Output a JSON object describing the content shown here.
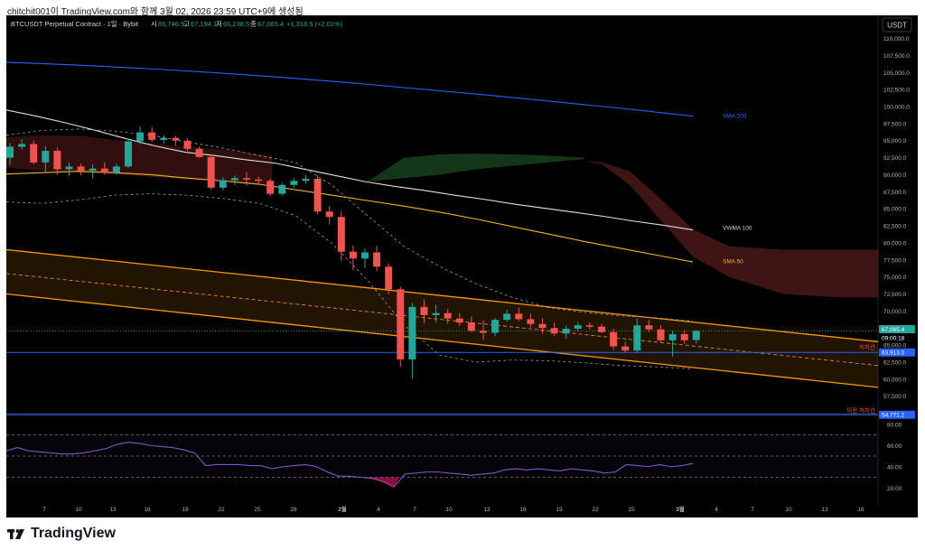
{
  "caption": "chitchit001이 TradingView.com와 함께 3월 02, 2026 23:59 UTC+9에 생성됨",
  "header": {
    "symbol": "BTCUSDT Perpetual Contract · 1일 · Bybit",
    "o_label": "시",
    "o": "65,746.9",
    "h_label": "고",
    "h": "67,194.1",
    "l_label": "저",
    "l": "65,238.5",
    "c_label": "종",
    "c": "67,065.4",
    "change": "+1,318.5 (+2.01%)"
  },
  "currency_button": "USDT",
  "price_axis": {
    "ticks": [
      "110,000.0",
      "107,500.0",
      "105,000.0",
      "102,500.0",
      "100,000.0",
      "97,500.0",
      "95,000.0",
      "92,500.0",
      "90,000.0",
      "87,500.0",
      "85,000.0",
      "82,500.0",
      "80,000.0",
      "77,500.0",
      "75,000.0",
      "72,500.0",
      "70,000.0",
      "67,500.0",
      "65,000.0",
      "62,500.0",
      "60,000.0",
      "57,500.0"
    ],
    "last_price": "67,065.4",
    "countdown": "09:00:18",
    "support_price": "63,913.0",
    "prev_low_price": "54,771.2"
  },
  "rsi_axis": {
    "ticks": [
      "80.00",
      "60.00",
      "40.00",
      "20.00"
    ]
  },
  "time_axis": {
    "ticks": [
      "7",
      "10",
      "13",
      "16",
      "19",
      "22",
      "25",
      "28",
      "2월",
      "4",
      "7",
      "10",
      "13",
      "16",
      "19",
      "22",
      "25",
      "3월",
      "4",
      "7",
      "10",
      "13",
      "16"
    ]
  },
  "labels": {
    "sma200": "SMA 200",
    "vwma100": "VWMA 100",
    "sma50": "SMA 50",
    "support": "지지선",
    "prev_low": "이전 저지선"
  },
  "colors": {
    "up": "#26a69a",
    "down": "#ef5350",
    "sma200": "#2962ff",
    "vwma100": "#e0e0e0",
    "sma50": "#f0b429",
    "channel": "#ff9800",
    "support_line": "#2962ff",
    "rsi": "#7e57c2"
  },
  "footer": {
    "brand": "TradingView"
  },
  "chart_data": {
    "type": "candlestick",
    "symbol": "BTCUSDT",
    "timeframe": "1D",
    "x_range": [
      "Jan 5",
      "Mar 2"
    ],
    "ylim": [
      56000,
      111000
    ],
    "candles": [
      {
        "o": 92500,
        "h": 94600,
        "l": 91400,
        "c": 94100
      },
      {
        "o": 94100,
        "h": 95200,
        "l": 93700,
        "c": 94500
      },
      {
        "o": 94500,
        "h": 95000,
        "l": 91500,
        "c": 91800
      },
      {
        "o": 91800,
        "h": 94200,
        "l": 90400,
        "c": 93500
      },
      {
        "o": 93500,
        "h": 94000,
        "l": 90000,
        "c": 90800
      },
      {
        "o": 90800,
        "h": 91800,
        "l": 89800,
        "c": 91200
      },
      {
        "o": 91200,
        "h": 91600,
        "l": 89900,
        "c": 90600
      },
      {
        "o": 90600,
        "h": 91500,
        "l": 89500,
        "c": 90900
      },
      {
        "o": 90900,
        "h": 91800,
        "l": 90000,
        "c": 90300
      },
      {
        "o": 90300,
        "h": 91600,
        "l": 90000,
        "c": 91200
      },
      {
        "o": 91200,
        "h": 95300,
        "l": 91000,
        "c": 94900
      },
      {
        "o": 94900,
        "h": 97100,
        "l": 94500,
        "c": 96200
      },
      {
        "o": 96200,
        "h": 97000,
        "l": 94800,
        "c": 95100
      },
      {
        "o": 95100,
        "h": 95800,
        "l": 94500,
        "c": 95400
      },
      {
        "o": 95400,
        "h": 95700,
        "l": 94300,
        "c": 95000
      },
      {
        "o": 95000,
        "h": 95300,
        "l": 93500,
        "c": 93800
      },
      {
        "o": 93800,
        "h": 94100,
        "l": 92500,
        "c": 92600
      },
      {
        "o": 92600,
        "h": 92900,
        "l": 87800,
        "c": 88100
      },
      {
        "o": 88100,
        "h": 89600,
        "l": 87700,
        "c": 89200
      },
      {
        "o": 89200,
        "h": 89900,
        "l": 88500,
        "c": 89500
      },
      {
        "o": 89500,
        "h": 90400,
        "l": 88400,
        "c": 89300
      },
      {
        "o": 89300,
        "h": 89700,
        "l": 88600,
        "c": 89100
      },
      {
        "o": 89100,
        "h": 89400,
        "l": 86900,
        "c": 87200
      },
      {
        "o": 87200,
        "h": 88800,
        "l": 86900,
        "c": 88500
      },
      {
        "o": 88500,
        "h": 89500,
        "l": 88100,
        "c": 89100
      },
      {
        "o": 89100,
        "h": 90000,
        "l": 88700,
        "c": 89400
      },
      {
        "o": 89400,
        "h": 89900,
        "l": 84200,
        "c": 84600
      },
      {
        "o": 84600,
        "h": 85400,
        "l": 82700,
        "c": 83800
      },
      {
        "o": 83800,
        "h": 84600,
        "l": 77400,
        "c": 78700
      },
      {
        "o": 78700,
        "h": 79600,
        "l": 76000,
        "c": 77700
      },
      {
        "o": 77700,
        "h": 79200,
        "l": 76300,
        "c": 78600
      },
      {
        "o": 78600,
        "h": 79600,
        "l": 75900,
        "c": 76500
      },
      {
        "o": 76500,
        "h": 77000,
        "l": 72500,
        "c": 73200
      },
      {
        "o": 73200,
        "h": 73600,
        "l": 61800,
        "c": 62900
      },
      {
        "o": 62900,
        "h": 71200,
        "l": 60100,
        "c": 70600
      },
      {
        "o": 70600,
        "h": 71700,
        "l": 68200,
        "c": 69400
      },
      {
        "o": 69400,
        "h": 70900,
        "l": 68300,
        "c": 69700
      },
      {
        "o": 69700,
        "h": 70300,
        "l": 68100,
        "c": 68900
      },
      {
        "o": 68900,
        "h": 69700,
        "l": 67800,
        "c": 68300
      },
      {
        "o": 68300,
        "h": 69200,
        "l": 66900,
        "c": 67100
      },
      {
        "o": 67100,
        "h": 68600,
        "l": 65700,
        "c": 66800
      },
      {
        "o": 66800,
        "h": 69000,
        "l": 66300,
        "c": 68700
      },
      {
        "o": 68700,
        "h": 70200,
        "l": 68400,
        "c": 69600
      },
      {
        "o": 69600,
        "h": 70500,
        "l": 68500,
        "c": 68800
      },
      {
        "o": 68800,
        "h": 69600,
        "l": 67600,
        "c": 68100
      },
      {
        "o": 68100,
        "h": 68900,
        "l": 66700,
        "c": 67500
      },
      {
        "o": 67500,
        "h": 68300,
        "l": 66300,
        "c": 66700
      },
      {
        "o": 66700,
        "h": 67900,
        "l": 65900,
        "c": 67400
      },
      {
        "o": 67400,
        "h": 68400,
        "l": 67000,
        "c": 67900
      },
      {
        "o": 67900,
        "h": 68300,
        "l": 67300,
        "c": 67700
      },
      {
        "o": 67700,
        "h": 68100,
        "l": 66800,
        "c": 66900
      },
      {
        "o": 66900,
        "h": 67400,
        "l": 64300,
        "c": 64800
      },
      {
        "o": 64800,
        "h": 65500,
        "l": 63900,
        "c": 64200
      },
      {
        "o": 64200,
        "h": 68900,
        "l": 63900,
        "c": 67900
      },
      {
        "o": 67900,
        "h": 68700,
        "l": 66900,
        "c": 67300
      },
      {
        "o": 67300,
        "h": 67900,
        "l": 65400,
        "c": 65700
      },
      {
        "o": 65700,
        "h": 67100,
        "l": 63300,
        "c": 66600
      },
      {
        "o": 66600,
        "h": 67200,
        "l": 65200,
        "c": 65700
      },
      {
        "o": 65746.9,
        "h": 67194.1,
        "l": 65238.5,
        "c": 67065.4
      }
    ],
    "sma200": [
      106500,
      106300,
      106100,
      105850,
      105600,
      105300,
      105000,
      104650,
      104300,
      103900,
      103500,
      103050,
      102600,
      102150,
      101700,
      101200,
      100700,
      100200,
      99700,
      99150,
      98600
    ],
    "vwma100": [
      99500,
      98600,
      97600,
      96500,
      95300,
      94200,
      93300,
      92800,
      92200,
      91700,
      90800,
      89900,
      89000,
      88300,
      87700,
      87000,
      86400,
      85700,
      85100,
      84500,
      83900,
      83200,
      82600,
      81900
    ],
    "sma50": [
      90100,
      90300,
      90500,
      90300,
      90000,
      89500,
      89100,
      88600,
      87800,
      87000,
      86200,
      85400,
      84500,
      83500,
      82400,
      81300,
      80200,
      79200,
      78200,
      77200
    ],
    "channel": {
      "upper_start": 79000,
      "upper_end": 65500,
      "mid_start": 75500,
      "mid_end": 62000,
      "lower_start": 72500,
      "lower_end": 58800
    },
    "support": 63913.0,
    "previous_low": 54771.2,
    "rsi": {
      "ylim": [
        10,
        90
      ],
      "levels": [
        70,
        50,
        30
      ],
      "values": [
        55,
        58,
        55,
        54,
        53,
        52,
        52,
        53,
        55,
        57,
        61,
        63,
        62,
        60,
        59,
        58,
        56,
        53,
        41,
        42,
        42,
        42,
        41,
        41,
        38,
        40,
        41,
        42,
        40,
        35,
        31,
        31,
        30,
        29,
        26,
        21,
        33,
        34,
        35,
        35,
        34,
        33,
        32,
        33,
        34,
        37,
        38,
        37,
        38,
        37,
        36,
        38,
        37,
        36,
        34,
        35,
        42,
        41,
        40,
        42,
        40,
        41,
        43
      ]
    }
  }
}
